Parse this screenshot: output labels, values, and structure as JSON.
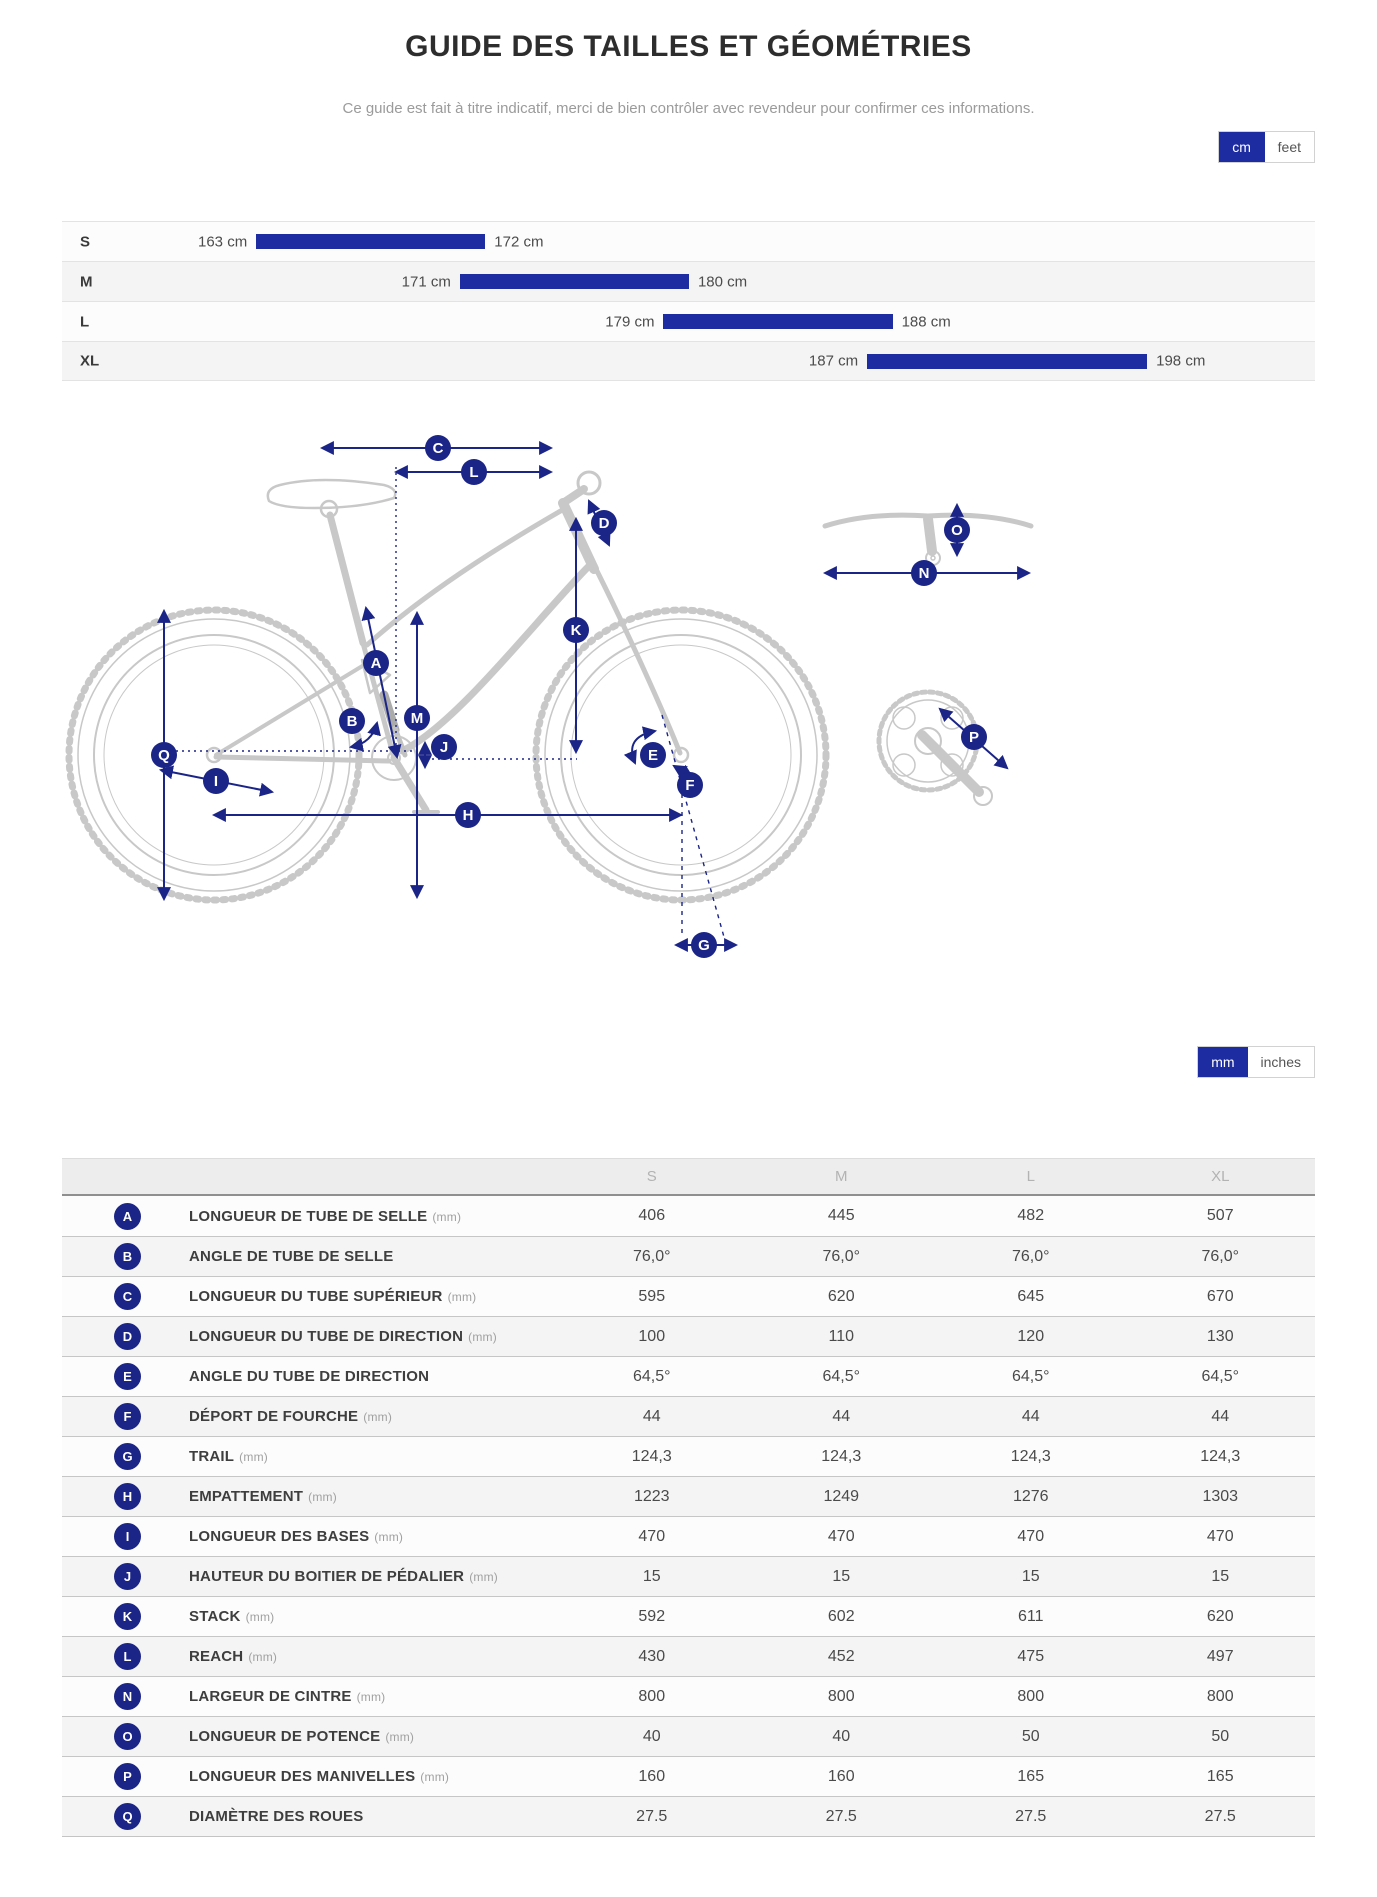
{
  "page": {
    "title": "GUIDE DES TAILLES ET GÉOMÉTRIES",
    "subtitle": "Ce guide est fait à titre indicatif, merci de bien contrôler avec revendeur pour confirmer ces informations."
  },
  "colors": {
    "accent_blue": "#1e2ca2",
    "badge_navy": "#1b2487"
  },
  "unit_toggle_top": {
    "options": [
      "cm",
      "feet"
    ],
    "active": "cm"
  },
  "unit_toggle_bottom": {
    "options": [
      "mm",
      "inches"
    ],
    "active": "mm"
  },
  "size_chart": {
    "unit": "cm",
    "rows": [
      {
        "size": "S",
        "min_cm": 163,
        "max_cm": 172,
        "min_label": "163 cm",
        "max_label": "172 cm"
      },
      {
        "size": "M",
        "min_cm": 171,
        "max_cm": 180,
        "min_label": "171 cm",
        "max_label": "180 cm"
      },
      {
        "size": "L",
        "min_cm": 179,
        "max_cm": 188,
        "min_label": "179 cm",
        "max_label": "188 cm"
      },
      {
        "size": "XL",
        "min_cm": 187,
        "max_cm": 198,
        "min_label": "187 cm",
        "max_label": "198 cm"
      }
    ]
  },
  "diagram": {
    "badges": [
      "C",
      "L",
      "D",
      "A",
      "B",
      "M",
      "J",
      "K",
      "E",
      "F",
      "Q",
      "I",
      "H",
      "G",
      "O",
      "N",
      "P"
    ]
  },
  "geometry_table": {
    "columns": [
      "S",
      "M",
      "L",
      "XL"
    ],
    "rows": [
      {
        "key": "A",
        "label": "LONGUEUR DE TUBE DE SELLE",
        "unit": "(mm)",
        "values": [
          "406",
          "445",
          "482",
          "507"
        ]
      },
      {
        "key": "B",
        "label": "ANGLE DE TUBE DE SELLE",
        "unit": "",
        "values": [
          "76,0°",
          "76,0°",
          "76,0°",
          "76,0°"
        ]
      },
      {
        "key": "C",
        "label": "LONGUEUR DU TUBE SUPÉRIEUR",
        "unit": "(mm)",
        "values": [
          "595",
          "620",
          "645",
          "670"
        ]
      },
      {
        "key": "D",
        "label": "LONGUEUR DU TUBE DE DIRECTION",
        "unit": "(mm)",
        "values": [
          "100",
          "110",
          "120",
          "130"
        ]
      },
      {
        "key": "E",
        "label": "ANGLE DU TUBE DE DIRECTION",
        "unit": "",
        "values": [
          "64,5°",
          "64,5°",
          "64,5°",
          "64,5°"
        ]
      },
      {
        "key": "F",
        "label": "DÉPORT DE FOURCHE",
        "unit": "(mm)",
        "values": [
          "44",
          "44",
          "44",
          "44"
        ]
      },
      {
        "key": "G",
        "label": "TRAIL",
        "unit": "(mm)",
        "values": [
          "124,3",
          "124,3",
          "124,3",
          "124,3"
        ]
      },
      {
        "key": "H",
        "label": "EMPATTEMENT",
        "unit": "(mm)",
        "values": [
          "1223",
          "1249",
          "1276",
          "1303"
        ]
      },
      {
        "key": "I",
        "label": "LONGUEUR DES BASES",
        "unit": "(mm)",
        "values": [
          "470",
          "470",
          "470",
          "470"
        ]
      },
      {
        "key": "J",
        "label": "HAUTEUR DU BOITIER DE PÉDALIER",
        "unit": "(mm)",
        "values": [
          "15",
          "15",
          "15",
          "15"
        ]
      },
      {
        "key": "K",
        "label": "STACK",
        "unit": "(mm)",
        "values": [
          "592",
          "602",
          "611",
          "620"
        ]
      },
      {
        "key": "L",
        "label": "REACH",
        "unit": "(mm)",
        "values": [
          "430",
          "452",
          "475",
          "497"
        ]
      },
      {
        "key": "N",
        "label": "LARGEUR DE CINTRE",
        "unit": "(mm)",
        "values": [
          "800",
          "800",
          "800",
          "800"
        ]
      },
      {
        "key": "O",
        "label": "LONGUEUR DE POTENCE",
        "unit": "(mm)",
        "values": [
          "40",
          "40",
          "50",
          "50"
        ]
      },
      {
        "key": "P",
        "label": "LONGUEUR DES MANIVELLES",
        "unit": "(mm)",
        "values": [
          "160",
          "160",
          "165",
          "165"
        ]
      },
      {
        "key": "Q",
        "label": "DIAMÈTRE DES ROUES",
        "unit": "",
        "values": [
          "27.5",
          "27.5",
          "27.5",
          "27.5"
        ]
      }
    ]
  }
}
